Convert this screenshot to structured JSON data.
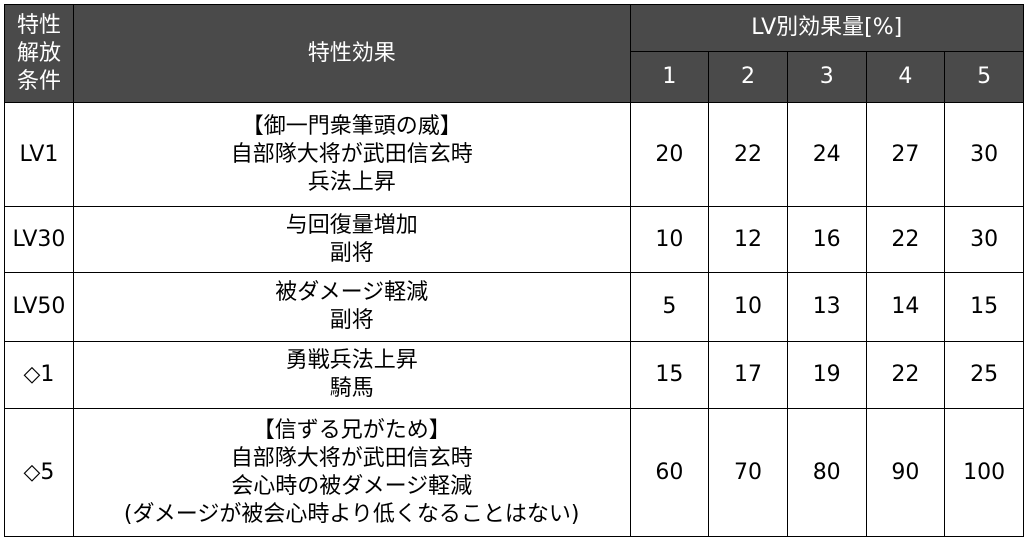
{
  "header": {
    "condition": "特性\n解放\n条件",
    "effect": "特性効果",
    "lv_group": "LV別効果量[%]",
    "levels": [
      "1",
      "2",
      "3",
      "4",
      "5"
    ]
  },
  "rows": [
    {
      "condition": "LV1",
      "effect": "【御一門衆筆頭の威】\n自部隊大将が武田信玄時\n兵法上昇",
      "values": [
        "20",
        "22",
        "24",
        "27",
        "30"
      ]
    },
    {
      "condition": "LV30",
      "effect": "与回復量増加\n副将",
      "values": [
        "10",
        "12",
        "16",
        "22",
        "30"
      ]
    },
    {
      "condition": "LV50",
      "effect": "被ダメージ軽減\n副将",
      "values": [
        "5",
        "10",
        "13",
        "14",
        "15"
      ]
    },
    {
      "condition": "◇1",
      "effect": "勇戦兵法上昇\n騎馬",
      "values": [
        "15",
        "17",
        "19",
        "22",
        "25"
      ]
    },
    {
      "condition": "◇5",
      "effect": "【信ずる兄がため】\n自部隊大将が武田信玄時\n会心時の被ダメージ軽減\n(ダメージが被会心時より低くなることはない)",
      "values": [
        "60",
        "70",
        "80",
        "90",
        "100"
      ]
    }
  ]
}
